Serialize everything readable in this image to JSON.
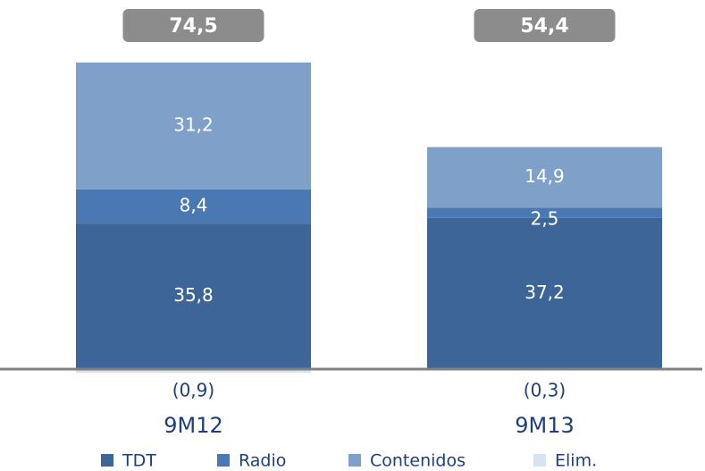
{
  "chart_data": {
    "type": "stacked-bar",
    "categories": [
      "9M12",
      "9M13"
    ],
    "series": [
      {
        "name": "TDT",
        "color": "#3e6597",
        "label_color": "#ffffff",
        "values": [
          35.8,
          37.2
        ],
        "value_labels": [
          "35,8",
          "37,2"
        ]
      },
      {
        "name": "Radio",
        "color": "#4a78b2",
        "label_color": "#ffffff",
        "values": [
          8.4,
          2.5
        ],
        "value_labels": [
          "8,4",
          "2,5"
        ]
      },
      {
        "name": "Contenidos",
        "color": "#7fa0c8",
        "label_color": "#ffffff",
        "values": [
          31.2,
          14.9
        ],
        "value_labels": [
          "31,2",
          "14,9"
        ]
      },
      {
        "name": "Elim.",
        "color": "#d6e3f0",
        "label_color": "#1f3f7a",
        "values": [
          -0.9,
          -0.3
        ],
        "value_labels": [
          "(0,9)",
          "(0,3)"
        ]
      }
    ],
    "totals": {
      "values": [
        74.5,
        54.4
      ],
      "value_labels": [
        "74,5",
        "54,4"
      ]
    },
    "legend": "bottom"
  }
}
